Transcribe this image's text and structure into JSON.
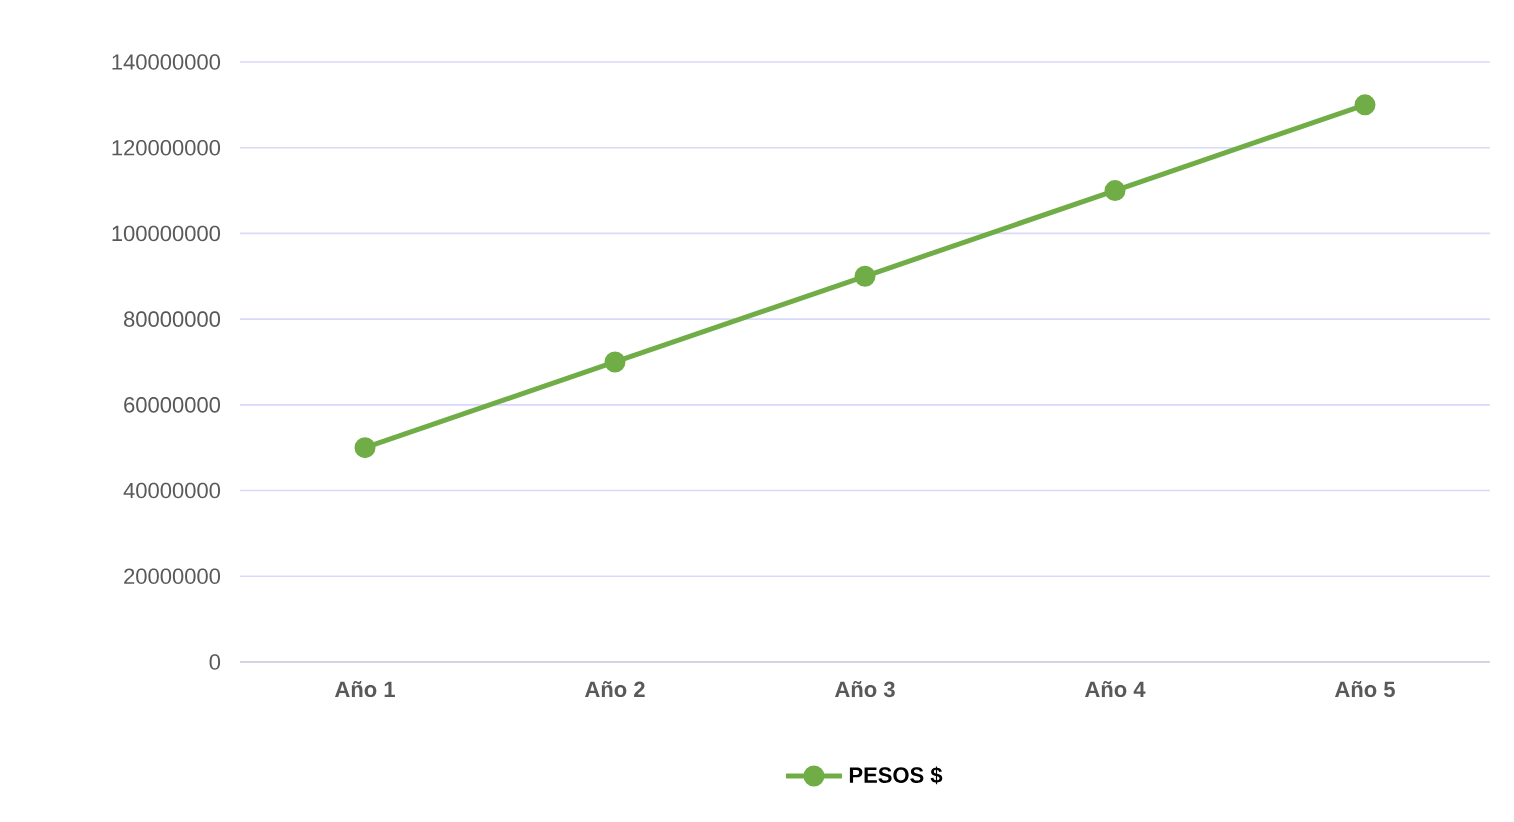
{
  "chart_data": {
    "type": "line",
    "categories": [
      "Año 1",
      "Año 2",
      "Año 3",
      "Año 4",
      "Año 5"
    ],
    "series": [
      {
        "name": "PESOS $",
        "color": "#70ad47",
        "values": [
          50000000,
          70000000,
          90000000,
          110000000,
          130000000
        ]
      }
    ],
    "ylim": [
      0,
      140000000
    ],
    "yticks": [
      0,
      20000000,
      40000000,
      60000000,
      80000000,
      100000000,
      120000000,
      140000000
    ],
    "grid": "y",
    "legend": "bottom",
    "marker": "circle",
    "line_style": "solid"
  }
}
